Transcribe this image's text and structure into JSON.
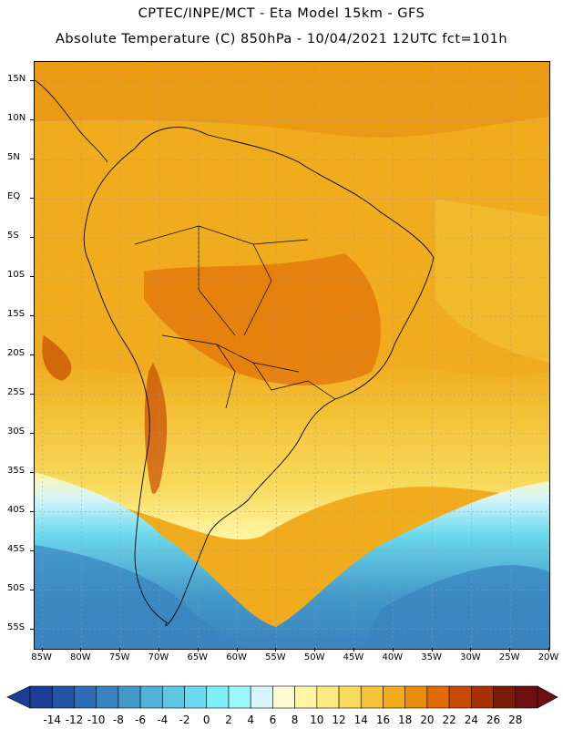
{
  "header": {
    "line1": "CPTEC/INPE/MCT  -   Eta Model 15km  -  GFS",
    "line2": "Absolute Temperature (C) 850hPa  - 10/04/2021 12UTC fct=101h"
  },
  "map": {
    "lat_labels": [
      "15N",
      "10N",
      "5N",
      "EQ",
      "5S",
      "10S",
      "15S",
      "20S",
      "25S",
      "30S",
      "35S",
      "40S",
      "45S",
      "50S",
      "55S"
    ],
    "lon_labels": [
      "85W",
      "80W",
      "75W",
      "70W",
      "65W",
      "60W",
      "55W",
      "50W",
      "45W",
      "40W",
      "35W",
      "30W",
      "25W",
      "20W"
    ],
    "lat_range": [
      17.5,
      -57.5
    ],
    "lon_range": [
      -86,
      -20
    ]
  },
  "legend": {
    "levels": [
      -14,
      -12,
      -10,
      -8,
      -6,
      -4,
      -2,
      0,
      2,
      4,
      6,
      8,
      10,
      12,
      14,
      16,
      18,
      20,
      22,
      24,
      26,
      28
    ],
    "labels": [
      "-14",
      "-12",
      "-10",
      "-8",
      "-6",
      "-4",
      "-2",
      "0",
      "2",
      "4",
      "6",
      "8",
      "10",
      "12",
      "14",
      "16",
      "18",
      "20",
      "22",
      "24",
      "26",
      "28"
    ],
    "colors": [
      "#1b3f94",
      "#2454a4",
      "#2e6eb4",
      "#3883c0",
      "#4499c8",
      "#50b0d8",
      "#5cc6e4",
      "#6cdaee",
      "#7eeef8",
      "#9af8fc",
      "#d6f6fc",
      "#fffad6",
      "#fff6a4",
      "#fcea80",
      "#f8da5c",
      "#f4c43a",
      "#f0ac1c",
      "#e88c0c",
      "#e06a06",
      "#c84a04",
      "#a83004",
      "#7a1c08",
      "#6e1010"
    ]
  }
}
